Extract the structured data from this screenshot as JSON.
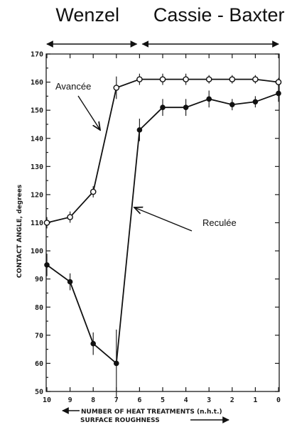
{
  "chart_data": {
    "type": "line",
    "regions": [
      {
        "label": "Wenzel",
        "from": 10,
        "to": 6
      },
      {
        "label": "Cassie - Baxter",
        "from": 6,
        "to": 0
      }
    ],
    "x": [
      10,
      9,
      8,
      7,
      6,
      5,
      4,
      3,
      2,
      1,
      0
    ],
    "x_tick_labels": [
      "10",
      "9",
      "8",
      "7",
      "6",
      "5",
      "4",
      "3",
      "2",
      "1",
      "0"
    ],
    "xlabel_line1": "NUMBER OF HEAT TREATMENTS (n.h.t.)",
    "xlabel_line2": "SURFACE ROUGHNESS",
    "ylabel": "CONTACT ANGLE, degrees",
    "ylim": [
      50,
      170
    ],
    "y_ticks": [
      50,
      60,
      70,
      80,
      90,
      100,
      110,
      120,
      130,
      140,
      150,
      160,
      170
    ],
    "x_reversed": true,
    "series": [
      {
        "name": "Avancée",
        "marker": "open-circle",
        "values": [
          110,
          112,
          121,
          158,
          161,
          161,
          161,
          161,
          161,
          161,
          160
        ],
        "errors": [
          2,
          2,
          2,
          4,
          2,
          2,
          2,
          1.5,
          1.5,
          1.5,
          1.5
        ]
      },
      {
        "name": "Reculée",
        "marker": "filled-circle",
        "values": [
          95,
          89,
          67,
          60,
          143,
          151,
          151,
          154,
          152,
          153,
          156
        ],
        "errors": [
          4,
          3,
          4,
          12,
          4,
          3,
          3,
          3,
          2,
          2,
          3
        ]
      }
    ]
  }
}
